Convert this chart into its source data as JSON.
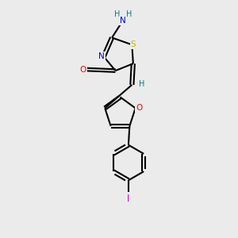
{
  "background_color": "#ebebeb",
  "atom_colors": {
    "C": "#000000",
    "N": "#0000cc",
    "O": "#ff0000",
    "S": "#bbbb00",
    "I": "#cc00cc",
    "H": "#008080"
  },
  "figsize": [
    3.0,
    3.0
  ],
  "dpi": 100,
  "lw": 1.5
}
